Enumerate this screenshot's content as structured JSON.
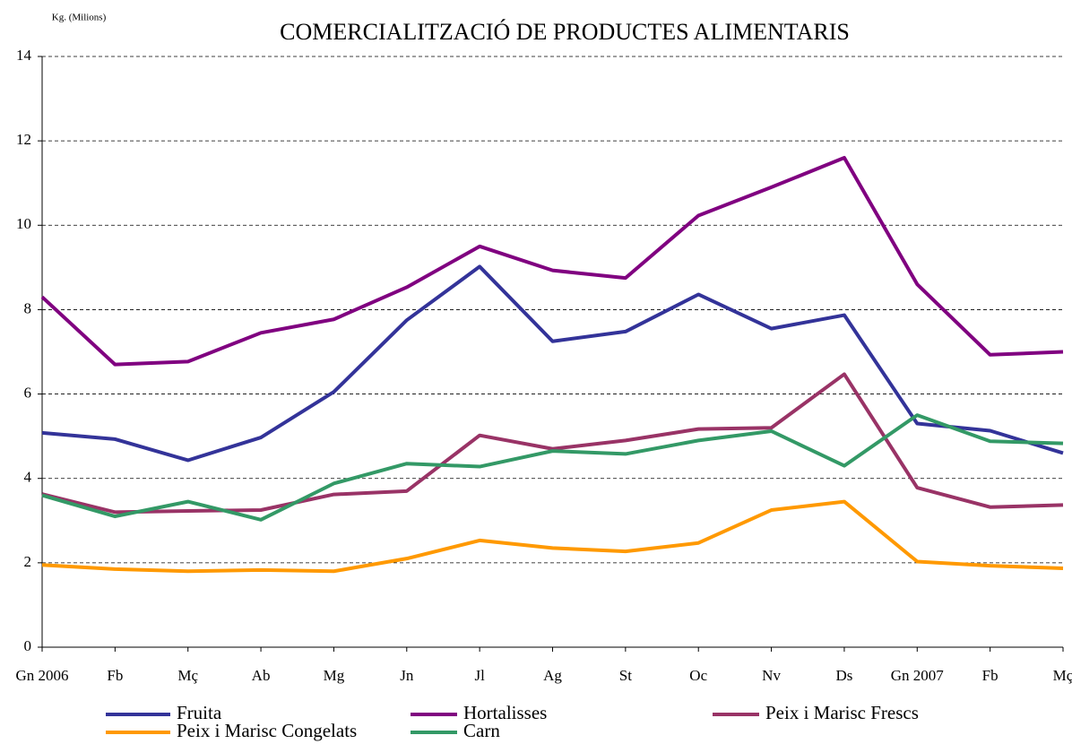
{
  "chart_data": {
    "type": "line",
    "title": "COMERCIALITZACIÓ DE PRODUCTES ALIMENTARIS",
    "y_label": "Kg. (Milions)",
    "categories": [
      "Gn 2006",
      "Fb",
      "Mç",
      "Ab",
      "Mg",
      "Jn",
      "Jl",
      "Ag",
      "St",
      "Oc",
      "Nv",
      "Ds",
      "Gn 2007",
      "Fb",
      "Mç"
    ],
    "series": [
      {
        "name": "Fruita",
        "color": "#333399",
        "values": [
          5.08,
          4.93,
          4.43,
          4.97,
          6.05,
          7.75,
          9.02,
          7.25,
          7.48,
          8.36,
          7.55,
          7.87,
          5.3,
          5.13,
          4.6
        ]
      },
      {
        "name": "Hortalisses",
        "color": "#800080",
        "values": [
          8.3,
          6.7,
          6.77,
          7.45,
          7.77,
          8.53,
          9.5,
          8.93,
          8.75,
          10.23,
          10.9,
          11.6,
          8.6,
          6.93,
          7.0
        ]
      },
      {
        "name": "Peix i Marisc Frescs",
        "color": "#993366",
        "values": [
          3.63,
          3.2,
          3.23,
          3.25,
          3.62,
          3.7,
          5.02,
          4.7,
          4.9,
          5.17,
          5.2,
          6.47,
          3.78,
          3.32,
          3.37
        ]
      },
      {
        "name": "Peix i Marisc Congelats",
        "color": "#FF9900",
        "values": [
          1.95,
          1.85,
          1.8,
          1.83,
          1.8,
          2.1,
          2.53,
          2.35,
          2.27,
          2.47,
          3.25,
          3.45,
          2.03,
          1.93,
          1.87
        ]
      },
      {
        "name": "Carn",
        "color": "#339966",
        "values": [
          3.6,
          3.1,
          3.45,
          3.02,
          3.88,
          4.35,
          4.28,
          4.65,
          4.58,
          4.9,
          5.12,
          4.3,
          5.5,
          4.88,
          4.83
        ]
      }
    ],
    "ylim": [
      0,
      14
    ],
    "yticks": [
      0,
      2,
      4,
      6,
      8,
      10,
      12,
      14
    ],
    "grid": true,
    "legend": "bottom"
  }
}
